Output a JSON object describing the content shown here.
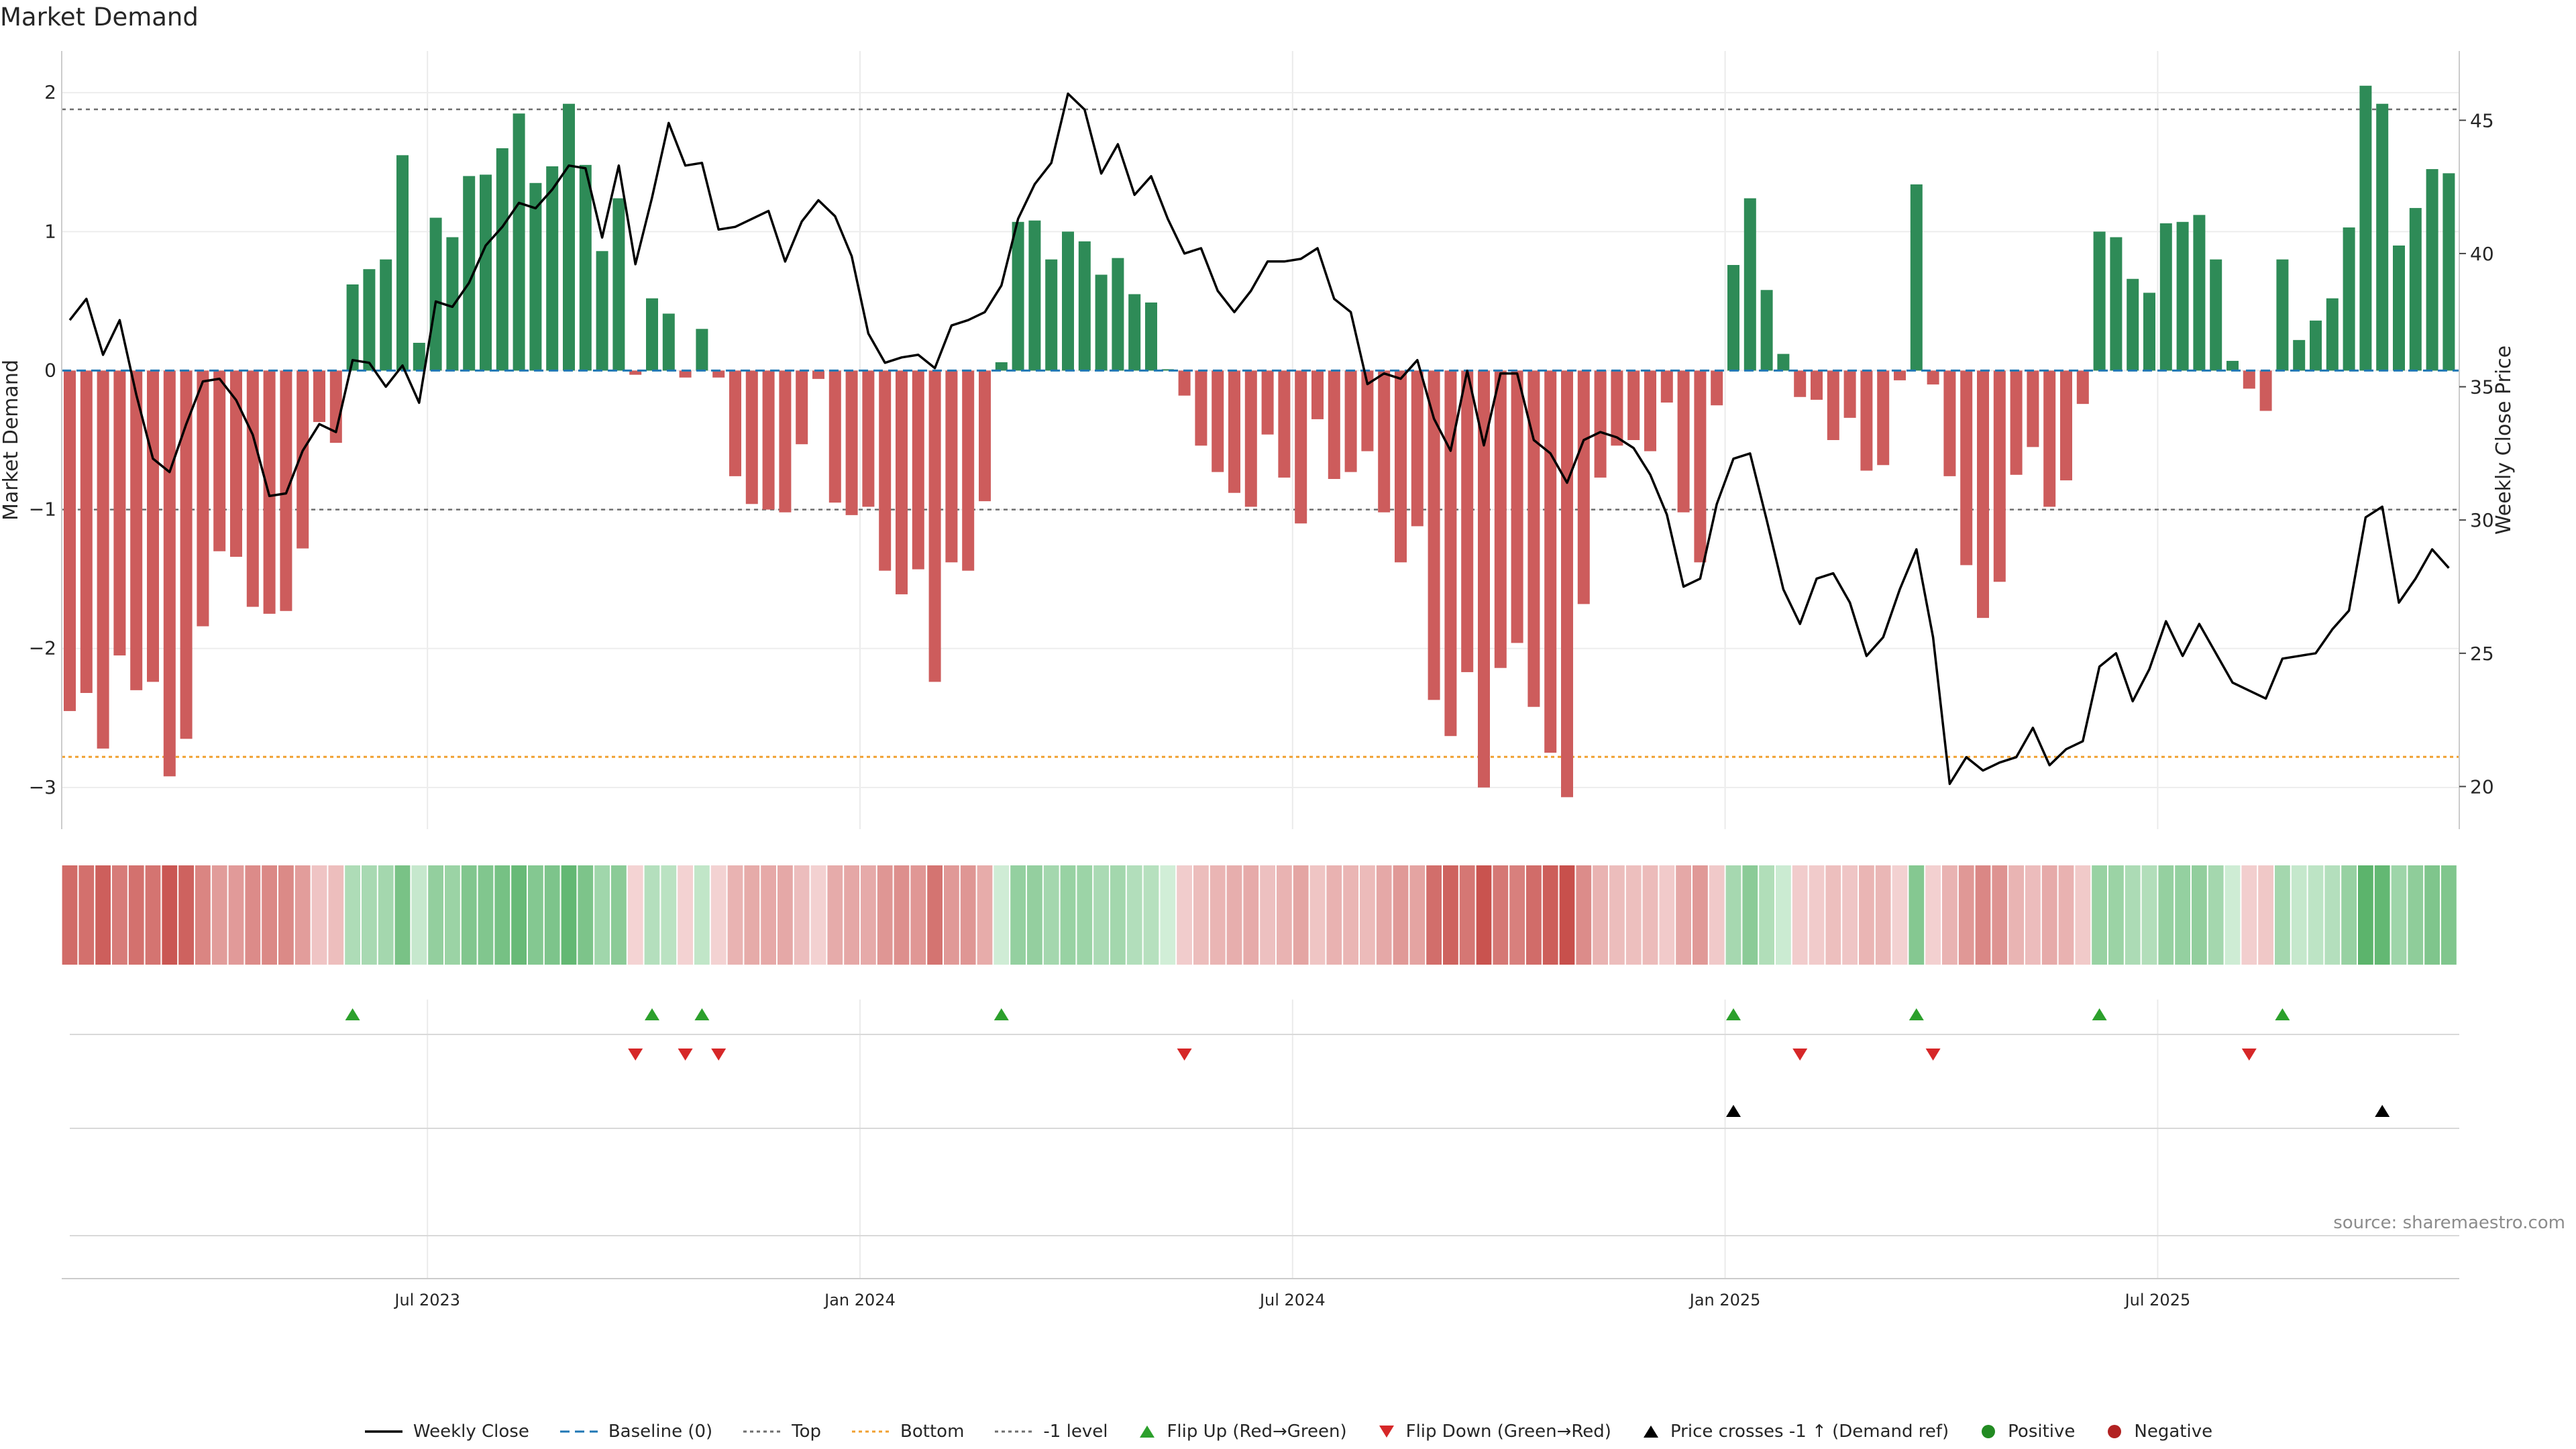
{
  "title": "Market Demand",
  "source_text": "source: sharemaestro.com",
  "colors": {
    "positive_bar": "#2e8b57",
    "negative_bar": "#cd5c5c",
    "price_line": "#000000",
    "flip_up": "#2ca02c",
    "flip_down": "#d62728",
    "price_cross": "#000000",
    "bottom_line": "#f0a030",
    "reference_line": "#6e6e6e"
  },
  "legend": [
    {
      "label": "Weekly Close",
      "icon": "solid-line-icon",
      "color": "#000000"
    },
    {
      "label": "Baseline (0)",
      "icon": "dashed-line-icon",
      "color": "#1f77b4"
    },
    {
      "label": "Top",
      "icon": "dotted-line-icon",
      "color": "#6e6e6e"
    },
    {
      "label": "Bottom",
      "icon": "dotted-line-icon",
      "color": "#f0a030"
    },
    {
      "label": "-1 level",
      "icon": "dotted-line-icon",
      "color": "#6e6e6e"
    },
    {
      "label": "Flip Up (Red→Green)",
      "icon": "triangle-up-icon",
      "color": "#2ca02c"
    },
    {
      "label": "Flip Down (Green→Red)",
      "icon": "triangle-down-icon",
      "color": "#d62728"
    },
    {
      "label": "Price crosses -1 ↑ (Demand ref)",
      "icon": "triangle-up-icon",
      "color": "#000000"
    },
    {
      "label": "Positive",
      "icon": "circle-icon",
      "color": "#228b22"
    },
    {
      "label": "Negative",
      "icon": "circle-icon",
      "color": "#b22222"
    }
  ],
  "chart_data": {
    "type": "bar",
    "title": "Market Demand",
    "ylabel": "Market Demand",
    "y2label": "Weekly Close Price",
    "ylim": [
      -3.3,
      2.3
    ],
    "y2lim": [
      18.4,
      47.6
    ],
    "yticks": [
      "2",
      "1",
      "0",
      "−1",
      "−2",
      "−3"
    ],
    "y2ticks": [
      "45",
      "40",
      "35",
      "30",
      "25",
      "20"
    ],
    "xticks": [
      "Jul 2023",
      "Jan 2024",
      "Jul 2024",
      "Jan 2025",
      "Jul 2025"
    ],
    "xtick_index": [
      21.5,
      47.5,
      73.5,
      99.5,
      125.5
    ],
    "reference_lines": {
      "top": 1.88,
      "bottom": -2.78,
      "minus_one": -1.0,
      "baseline": 0
    },
    "grid": true,
    "legend_position": "bottom-center",
    "demand": [
      -2.45,
      -2.32,
      -2.72,
      -2.05,
      -2.3,
      -2.24,
      -2.92,
      -2.65,
      -1.84,
      -1.3,
      -1.34,
      -1.7,
      -1.75,
      -1.73,
      -1.28,
      -0.37,
      -0.52,
      0.62,
      0.73,
      0.8,
      1.55,
      0.2,
      1.1,
      0.96,
      1.4,
      1.41,
      1.6,
      1.85,
      1.35,
      1.47,
      1.92,
      1.48,
      0.86,
      1.24,
      -0.03,
      0.52,
      0.41,
      -0.05,
      0.3,
      -0.05,
      -0.76,
      -0.96,
      -1.0,
      -1.02,
      -0.53,
      -0.06,
      -0.95,
      -1.04,
      -0.98,
      -1.44,
      -1.61,
      -1.43,
      -2.24,
      -1.38,
      -1.44,
      -0.94,
      0.06,
      1.07,
      1.08,
      0.8,
      1.0,
      0.93,
      0.69,
      0.81,
      0.55,
      0.49,
      0.01,
      -0.18,
      -0.54,
      -0.73,
      -0.88,
      -0.98,
      -0.46,
      -0.77,
      -1.1,
      -0.35,
      -0.78,
      -0.73,
      -0.58,
      -1.02,
      -1.38,
      -1.12,
      -2.37,
      -2.63,
      -2.17,
      -3.0,
      -2.14,
      -1.96,
      -2.42,
      -2.75,
      -3.07,
      -1.68,
      -0.77,
      -0.54,
      -0.5,
      -0.58,
      -0.23,
      -1.02,
      -1.38,
      -0.25,
      0.76,
      1.24,
      0.58,
      0.12,
      -0.19,
      -0.21,
      -0.5,
      -0.34,
      -0.72,
      -0.68,
      -0.07,
      1.34,
      -0.1,
      -0.76,
      -1.4,
      -1.78,
      -1.52,
      -0.75,
      -0.55,
      -0.98,
      -0.79,
      -0.24,
      1.0,
      0.96,
      0.66,
      0.56,
      1.06,
      1.07,
      1.12,
      0.8,
      0.07,
      -0.13,
      -0.29,
      0.8,
      0.22,
      0.36,
      0.52,
      1.03,
      2.05,
      1.92,
      0.9,
      1.17,
      1.45,
      1.42
    ],
    "price": [
      37.5,
      38.3,
      36.2,
      37.5,
      34.7,
      32.3,
      31.8,
      33.6,
      35.2,
      35.3,
      34.5,
      33.2,
      30.9,
      31.0,
      32.6,
      33.6,
      33.3,
      36.0,
      35.9,
      35.0,
      35.8,
      34.4,
      38.2,
      38.0,
      38.9,
      40.3,
      41.0,
      41.9,
      41.7,
      42.4,
      43.3,
      43.2,
      40.6,
      43.3,
      39.6,
      42.1,
      44.9,
      43.3,
      43.4,
      40.9,
      41.0,
      41.3,
      41.6,
      39.7,
      41.2,
      42.0,
      41.4,
      39.9,
      37.0,
      35.9,
      36.1,
      36.2,
      35.7,
      37.3,
      37.5,
      37.8,
      38.8,
      41.3,
      42.6,
      43.4,
      46.0,
      45.4,
      43.0,
      44.1,
      42.2,
      42.9,
      41.3,
      40.0,
      40.2,
      38.6,
      37.8,
      38.6,
      39.7,
      39.7,
      39.8,
      40.2,
      38.3,
      37.8,
      35.1,
      35.5,
      35.3,
      36.0,
      33.8,
      32.6,
      35.6,
      32.8,
      35.5,
      35.5,
      33.0,
      32.5,
      31.4,
      33.0,
      33.3,
      33.1,
      32.7,
      31.7,
      30.2,
      27.5,
      27.8,
      30.6,
      32.3,
      32.5,
      30.0,
      27.4,
      26.1,
      27.8,
      28.0,
      26.9,
      24.9,
      25.6,
      27.4,
      28.9,
      25.6,
      20.1,
      21.1,
      20.6,
      20.9,
      21.1,
      22.2,
      20.8,
      21.4,
      21.7,
      24.5,
      25.0,
      23.2,
      24.4,
      26.2,
      24.9,
      26.1,
      25.0,
      23.9,
      23.6,
      23.3,
      24.8,
      24.9,
      25.0,
      25.9,
      26.6,
      30.1,
      30.5,
      26.9,
      27.8,
      28.9,
      28.2
    ],
    "flip_up_index": [
      17,
      35,
      38,
      56,
      100,
      111,
      122,
      133
    ],
    "flip_down_index": [
      34,
      37,
      39,
      67,
      104,
      112,
      131
    ],
    "price_cross_index": [
      100,
      139
    ]
  }
}
